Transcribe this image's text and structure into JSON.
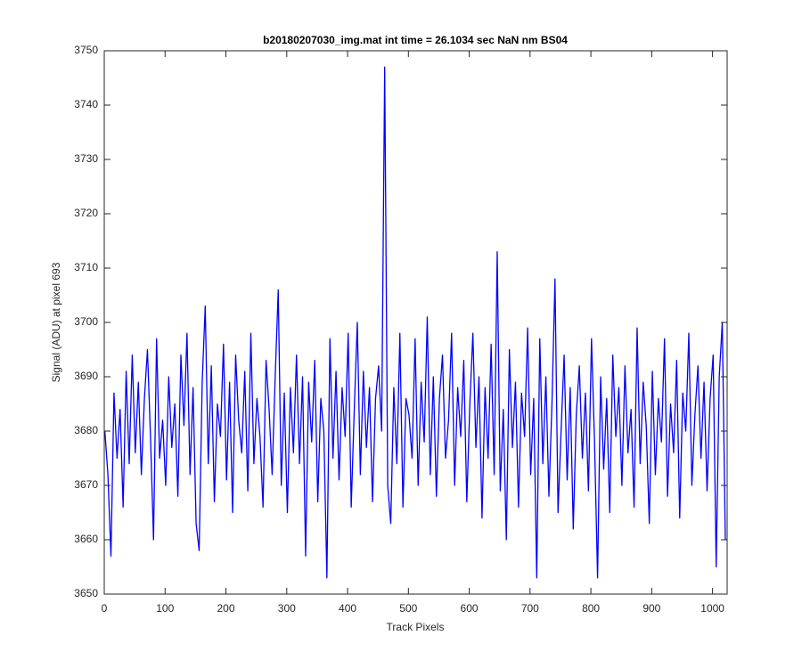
{
  "chart_data": {
    "type": "line",
    "title": "b20180207030_img.mat int time = 26.1034 sec  NaN nm BS04",
    "xlabel": "Track Pixels",
    "ylabel": "Signal (ADU) at pixel 693",
    "color": "#0000ff",
    "xlim": [
      0,
      1024
    ],
    "ylim": [
      3650,
      3750
    ],
    "xticks": [
      0,
      100,
      200,
      300,
      400,
      500,
      600,
      700,
      800,
      900,
      1000
    ],
    "yticks": [
      3650,
      3660,
      3670,
      3680,
      3690,
      3700,
      3710,
      3720,
      3730,
      3740,
      3750
    ],
    "grid": false,
    "x": [
      1,
      6,
      11,
      16,
      21,
      26,
      31,
      36,
      41,
      46,
      51,
      56,
      61,
      66,
      71,
      76,
      81,
      86,
      91,
      96,
      101,
      106,
      111,
      116,
      121,
      126,
      131,
      136,
      141,
      146,
      151,
      156,
      161,
      166,
      171,
      176,
      181,
      186,
      191,
      196,
      201,
      206,
      211,
      216,
      221,
      226,
      231,
      236,
      241,
      246,
      251,
      256,
      261,
      266,
      271,
      276,
      281,
      286,
      291,
      296,
      301,
      306,
      311,
      316,
      321,
      326,
      331,
      336,
      341,
      346,
      351,
      356,
      361,
      366,
      371,
      376,
      381,
      386,
      391,
      396,
      401,
      406,
      411,
      416,
      421,
      426,
      431,
      436,
      441,
      446,
      451,
      456,
      461,
      466,
      471,
      476,
      481,
      486,
      491,
      496,
      501,
      506,
      511,
      516,
      521,
      526,
      531,
      536,
      541,
      546,
      551,
      556,
      561,
      566,
      571,
      576,
      581,
      586,
      591,
      596,
      601,
      606,
      611,
      616,
      621,
      626,
      631,
      636,
      641,
      646,
      651,
      656,
      661,
      666,
      671,
      676,
      681,
      686,
      691,
      696,
      701,
      706,
      711,
      716,
      721,
      726,
      731,
      736,
      741,
      746,
      751,
      756,
      761,
      766,
      771,
      776,
      781,
      786,
      791,
      796,
      801,
      806,
      811,
      816,
      821,
      826,
      831,
      836,
      841,
      846,
      851,
      856,
      861,
      866,
      871,
      876,
      881,
      886,
      891,
      896,
      901,
      906,
      911,
      916,
      921,
      926,
      931,
      936,
      941,
      946,
      951,
      956,
      961,
      966,
      971,
      976,
      981,
      986,
      991,
      996,
      1001,
      1006,
      1011,
      1016,
      1021
    ],
    "values": [
      3680,
      3672,
      3657,
      3687,
      3675,
      3684,
      3666,
      3691,
      3674,
      3694,
      3676,
      3689,
      3672,
      3686,
      3695,
      3679,
      3660,
      3697,
      3675,
      3682,
      3670,
      3690,
      3677,
      3685,
      3668,
      3694,
      3681,
      3698,
      3672,
      3688,
      3663,
      3658,
      3689,
      3703,
      3674,
      3692,
      3667,
      3685,
      3679,
      3696,
      3671,
      3689,
      3665,
      3694,
      3682,
      3676,
      3691,
      3669,
      3698,
      3674,
      3686,
      3679,
      3666,
      3693,
      3684,
      3672,
      3690,
      3706,
      3670,
      3687,
      3665,
      3688,
      3676,
      3694,
      3674,
      3690,
      3657,
      3689,
      3678,
      3693,
      3667,
      3686,
      3680,
      3653,
      3697,
      3675,
      3691,
      3671,
      3688,
      3679,
      3698,
      3666,
      3684,
      3700,
      3672,
      3691,
      3677,
      3688,
      3667,
      3686,
      3692,
      3680,
      3747,
      3670,
      3663,
      3688,
      3674,
      3698,
      3666,
      3686,
      3683,
      3675,
      3697,
      3670,
      3689,
      3678,
      3701,
      3672,
      3690,
      3668,
      3686,
      3694,
      3675,
      3682,
      3698,
      3670,
      3688,
      3679,
      3693,
      3667,
      3685,
      3698,
      3677,
      3690,
      3664,
      3688,
      3675,
      3696,
      3672,
      3713,
      3669,
      3684,
      3660,
      3695,
      3677,
      3689,
      3666,
      3687,
      3679,
      3699,
      3672,
      3686,
      3653,
      3697,
      3674,
      3690,
      3668,
      3685,
      3708,
      3665,
      3680,
      3694,
      3671,
      3688,
      3662,
      3683,
      3692,
      3675,
      3687,
      3669,
      3697,
      3678,
      3653,
      3690,
      3673,
      3686,
      3665,
      3694,
      3679,
      3688,
      3670,
      3692,
      3676,
      3684,
      3666,
      3699,
      3674,
      3689,
      3681,
      3663,
      3691,
      3672,
      3686,
      3678,
      3697,
      3668,
      3685,
      3676,
      3693,
      3664,
      3687,
      3680,
      3698,
      3670,
      3683,
      3692,
      3675,
      3689,
      3669,
      3686,
      3694,
      3655,
      3690,
      3700,
      3660
    ]
  }
}
